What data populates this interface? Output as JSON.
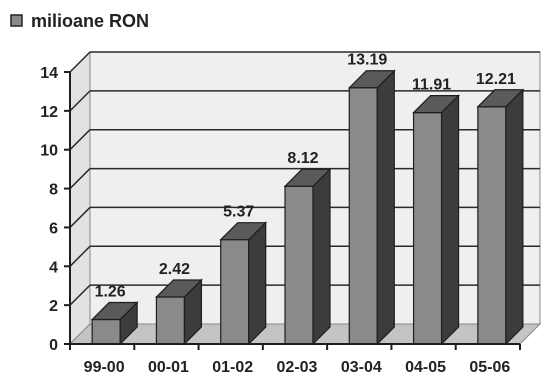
{
  "chart_data": {
    "type": "bar",
    "categories": [
      "99-00",
      "00-01",
      "01-02",
      "02-03",
      "03-04",
      "04-05",
      "05-06"
    ],
    "series": [
      {
        "name": "milioane RON",
        "values": [
          1.26,
          2.42,
          5.37,
          8.12,
          13.19,
          11.91,
          12.21
        ]
      }
    ],
    "data_labels": [
      "1.26",
      "2.42",
      "5.37",
      "8.12",
      "13.19",
      "11.91",
      "12.21"
    ],
    "ylim": [
      0,
      14
    ],
    "yticks": [
      0,
      2,
      4,
      6,
      8,
      10,
      12,
      14
    ],
    "grid": true,
    "legend_position": "top-left",
    "style": "3d-column",
    "colors": {
      "bar_front": "#8a8a8a",
      "bar_side": "#3c3c3c",
      "bar_top": "#5a5a5a",
      "wall": "#efefef",
      "floor": "#c4c4c4",
      "grid": "#2a2a2a"
    }
  }
}
